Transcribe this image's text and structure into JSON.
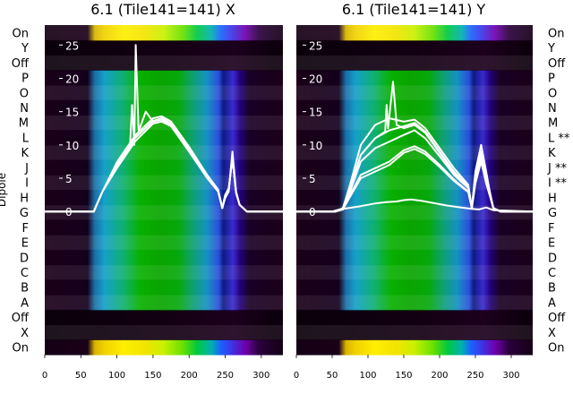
{
  "chart_data": [
    {
      "type": "heatmap",
      "title": "6.1 (Tile141=141) X",
      "ylabel": "Dipole",
      "xlabel": "",
      "x_ticks": [
        0,
        50,
        100,
        150,
        200,
        250,
        300
      ],
      "xlim": [
        0,
        330
      ],
      "overlay_ticks": [
        0,
        5,
        10,
        15,
        20,
        25
      ],
      "overlay_ylim": [
        -21.5,
        28
      ],
      "rows": [
        "On",
        "X",
        "Off",
        "A",
        "B",
        "C",
        "D",
        "E",
        "F",
        "G",
        "H",
        "I",
        "J",
        "K",
        "L",
        "M",
        "N",
        "O",
        "P",
        "Off",
        "Y",
        "On"
      ],
      "flagged_rows": [],
      "series": [
        {
          "x": [
            0,
            60,
            68,
            72,
            80,
            100,
            125,
            150,
            162,
            175,
            200,
            225,
            240,
            246,
            250,
            255,
            260,
            265,
            270,
            280,
            330
          ],
          "values": [
            0,
            0,
            0,
            1,
            3,
            6.5,
            10.5,
            13.2,
            13.5,
            12.8,
            9,
            5,
            3,
            0.5,
            2,
            3,
            9,
            3,
            1,
            0,
            0
          ]
        },
        {
          "x": [
            0,
            60,
            68,
            72,
            80,
            100,
            125,
            150,
            162,
            175,
            200,
            225,
            240,
            246,
            250,
            255,
            260,
            265,
            270,
            280,
            330
          ],
          "values": [
            0,
            0,
            0,
            1,
            3,
            7,
            11,
            13.6,
            14,
            13.2,
            9.4,
            5.3,
            3.2,
            0.5,
            2.2,
            3.2,
            8.5,
            3,
            1,
            0,
            0
          ]
        },
        {
          "x": [
            0,
            60,
            68,
            72,
            80,
            100,
            125,
            150,
            162,
            175,
            200,
            225,
            240,
            246,
            250,
            255,
            260,
            265,
            270,
            280,
            330
          ],
          "values": [
            0,
            0,
            0,
            1,
            3,
            7.4,
            11.4,
            14,
            14.3,
            13.5,
            9.7,
            5.5,
            3.3,
            0.5,
            2.4,
            3.4,
            8,
            2.8,
            1,
            0,
            0
          ]
        },
        {
          "x": [
            0,
            60,
            68,
            72,
            80,
            100,
            118,
            121,
            124,
            126,
            130,
            140,
            150,
            162,
            175,
            200,
            225,
            240,
            246,
            250,
            255,
            260,
            265,
            270,
            280,
            330
          ],
          "values": [
            0,
            0,
            0,
            1,
            3,
            7,
            9.5,
            16,
            10,
            25,
            12,
            15,
            13.5,
            13.8,
            13,
            9.5,
            5.4,
            3.2,
            0.5,
            2.5,
            3.5,
            8,
            2.8,
            1,
            0,
            0
          ]
        }
      ]
    },
    {
      "type": "heatmap",
      "title": "6.1 (Tile141=141) Y",
      "ylabel": "",
      "xlabel": "",
      "x_ticks": [
        0,
        50,
        100,
        150,
        200,
        250,
        300
      ],
      "xlim": [
        0,
        330
      ],
      "overlay_ticks": [
        0,
        5,
        10,
        15,
        20,
        25
      ],
      "overlay_ylim": [
        -21.5,
        28
      ],
      "rows": [
        "On",
        "X",
        "Off",
        "A",
        "B",
        "C",
        "D",
        "E",
        "F",
        "G",
        "H",
        "I **",
        "J **",
        "K",
        "L **",
        "M",
        "N",
        "O",
        "P",
        "Off",
        "Y",
        "On"
      ],
      "flagged_rows": [
        "I",
        "J",
        "L"
      ],
      "series": [
        {
          "x": [
            0,
            55,
            65,
            75,
            90,
            110,
            130,
            150,
            165,
            180,
            200,
            220,
            240,
            245,
            250,
            258,
            265,
            270,
            275,
            285,
            330
          ],
          "values": [
            0,
            0,
            0.5,
            4,
            10,
            13,
            14,
            13.5,
            13.8,
            12.5,
            9.5,
            6.5,
            4,
            0.5,
            6,
            10,
            6,
            3,
            0.5,
            0,
            0
          ]
        },
        {
          "x": [
            0,
            55,
            65,
            75,
            90,
            110,
            130,
            150,
            165,
            180,
            200,
            220,
            240,
            245,
            250,
            258,
            265,
            270,
            275,
            285,
            330
          ],
          "values": [
            0,
            0,
            0.5,
            3.5,
            8.5,
            11,
            12.2,
            12.8,
            13.3,
            12,
            9,
            6,
            3.8,
            0.5,
            5.5,
            9,
            5.5,
            3,
            0.5,
            0,
            0
          ]
        },
        {
          "x": [
            0,
            55,
            65,
            75,
            90,
            110,
            130,
            150,
            165,
            180,
            200,
            220,
            240,
            245,
            250,
            258,
            265,
            270,
            275,
            285,
            330
          ],
          "values": [
            0,
            0,
            0.4,
            3,
            7.5,
            9.5,
            10.5,
            11.5,
            12.2,
            11,
            8.3,
            5.5,
            3.5,
            0.5,
            5,
            8.5,
            5,
            2.8,
            0.5,
            0,
            0
          ]
        },
        {
          "x": [
            0,
            55,
            65,
            75,
            90,
            110,
            130,
            150,
            165,
            180,
            200,
            220,
            240,
            245,
            250,
            258,
            265,
            270,
            275,
            285,
            330
          ],
          "values": [
            0,
            0,
            0.3,
            2.5,
            5.5,
            6.5,
            7.5,
            9.2,
            9.8,
            9,
            7,
            4.8,
            3,
            0.5,
            4.5,
            8,
            4.5,
            2.5,
            0.5,
            0,
            0
          ]
        },
        {
          "x": [
            0,
            55,
            65,
            75,
            90,
            110,
            130,
            150,
            165,
            180,
            200,
            220,
            240,
            245,
            250,
            258,
            265,
            270,
            275,
            285,
            330
          ],
          "values": [
            0,
            0,
            0.3,
            2.2,
            5,
            6,
            7,
            8.8,
            9.4,
            8.6,
            6.7,
            4.6,
            2.9,
            0.5,
            4.2,
            7.5,
            4.2,
            2.4,
            0.5,
            0,
            0
          ]
        },
        {
          "x": [
            0,
            55,
            65,
            75,
            90,
            110,
            124,
            126,
            128,
            135,
            140,
            150,
            165,
            180,
            200,
            220,
            240,
            245,
            250,
            258,
            265,
            270,
            275,
            285,
            330
          ],
          "values": [
            0,
            0,
            0.4,
            3.5,
            8.5,
            11,
            12,
            16,
            12.5,
            19.5,
            13,
            12.5,
            13,
            11.8,
            8.8,
            5.8,
            3.6,
            0.5,
            5.2,
            8.8,
            5.2,
            2.9,
            0.5,
            0,
            0
          ]
        },
        {
          "x": [
            0,
            50,
            60,
            90,
            110,
            125,
            140,
            150,
            160,
            175,
            190,
            210,
            230,
            245,
            255,
            265,
            275,
            330
          ],
          "values": [
            0,
            0,
            0.3,
            0.8,
            1.2,
            1.4,
            1.5,
            1.7,
            1.8,
            1.6,
            1.3,
            0.9,
            0.6,
            0.4,
            0.3,
            0.6,
            0.2,
            0
          ]
        }
      ]
    }
  ]
}
